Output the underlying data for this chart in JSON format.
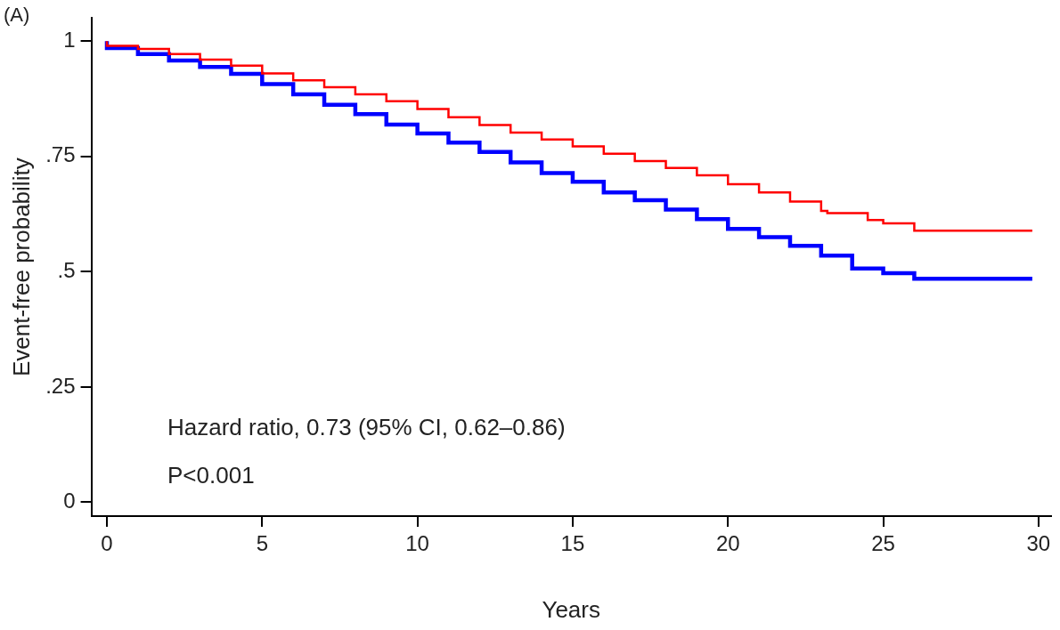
{
  "chart_data": {
    "type": "step",
    "xlabel": "Years",
    "ylabel": "Event-free probability",
    "annotations": [
      "(A)",
      "Hazard ratio, 0.73 (95% CI, 0.62–0.86)",
      "P<0.001"
    ],
    "xlim": [
      -0.5,
      30.4
    ],
    "xticks": [
      0,
      5,
      10,
      15,
      20,
      25,
      30
    ],
    "ylim": [
      -0.03,
      1.05
    ],
    "yticks": [
      {
        "value": 0,
        "label": "0"
      },
      {
        "value": 0.25,
        "label": ".25"
      },
      {
        "value": 0.5,
        "label": ".5"
      },
      {
        "value": 0.75,
        "label": ".75"
      },
      {
        "value": 1,
        "label": "1"
      }
    ],
    "grid": false,
    "legend": false,
    "marker": "none",
    "line_style": "solid",
    "series": [
      {
        "color": "#ff0000",
        "x": [
          0,
          1,
          2,
          3,
          4,
          5,
          6,
          7,
          8,
          9,
          10,
          11,
          12,
          13,
          14,
          15,
          16,
          17,
          18,
          19,
          20,
          21,
          22,
          23,
          23.2,
          24.5,
          25,
          26,
          26.5,
          29.8
        ],
        "values": [
          1,
          0.99,
          0.983,
          0.972,
          0.96,
          0.947,
          0.93,
          0.915,
          0.9,
          0.885,
          0.87,
          0.853,
          0.835,
          0.818,
          0.802,
          0.787,
          0.772,
          0.756,
          0.74,
          0.725,
          0.709,
          0.69,
          0.672,
          0.652,
          0.632,
          0.627,
          0.612,
          0.605,
          0.589,
          0.589
        ]
      },
      {
        "color": "#0000ff",
        "x": [
          0,
          1,
          2,
          3,
          4,
          5,
          6,
          7,
          8,
          9,
          10,
          11,
          12,
          13,
          14,
          15,
          16,
          17,
          18,
          19,
          20,
          21,
          22,
          23,
          23.2,
          24,
          25,
          26,
          26.5,
          29.8
        ],
        "values": [
          1,
          0.985,
          0.972,
          0.958,
          0.944,
          0.929,
          0.907,
          0.885,
          0.862,
          0.842,
          0.819,
          0.8,
          0.78,
          0.76,
          0.737,
          0.714,
          0.695,
          0.672,
          0.655,
          0.635,
          0.614,
          0.593,
          0.575,
          0.556,
          0.535,
          0.535,
          0.507,
          0.497,
          0.485,
          0.485
        ]
      }
    ]
  }
}
